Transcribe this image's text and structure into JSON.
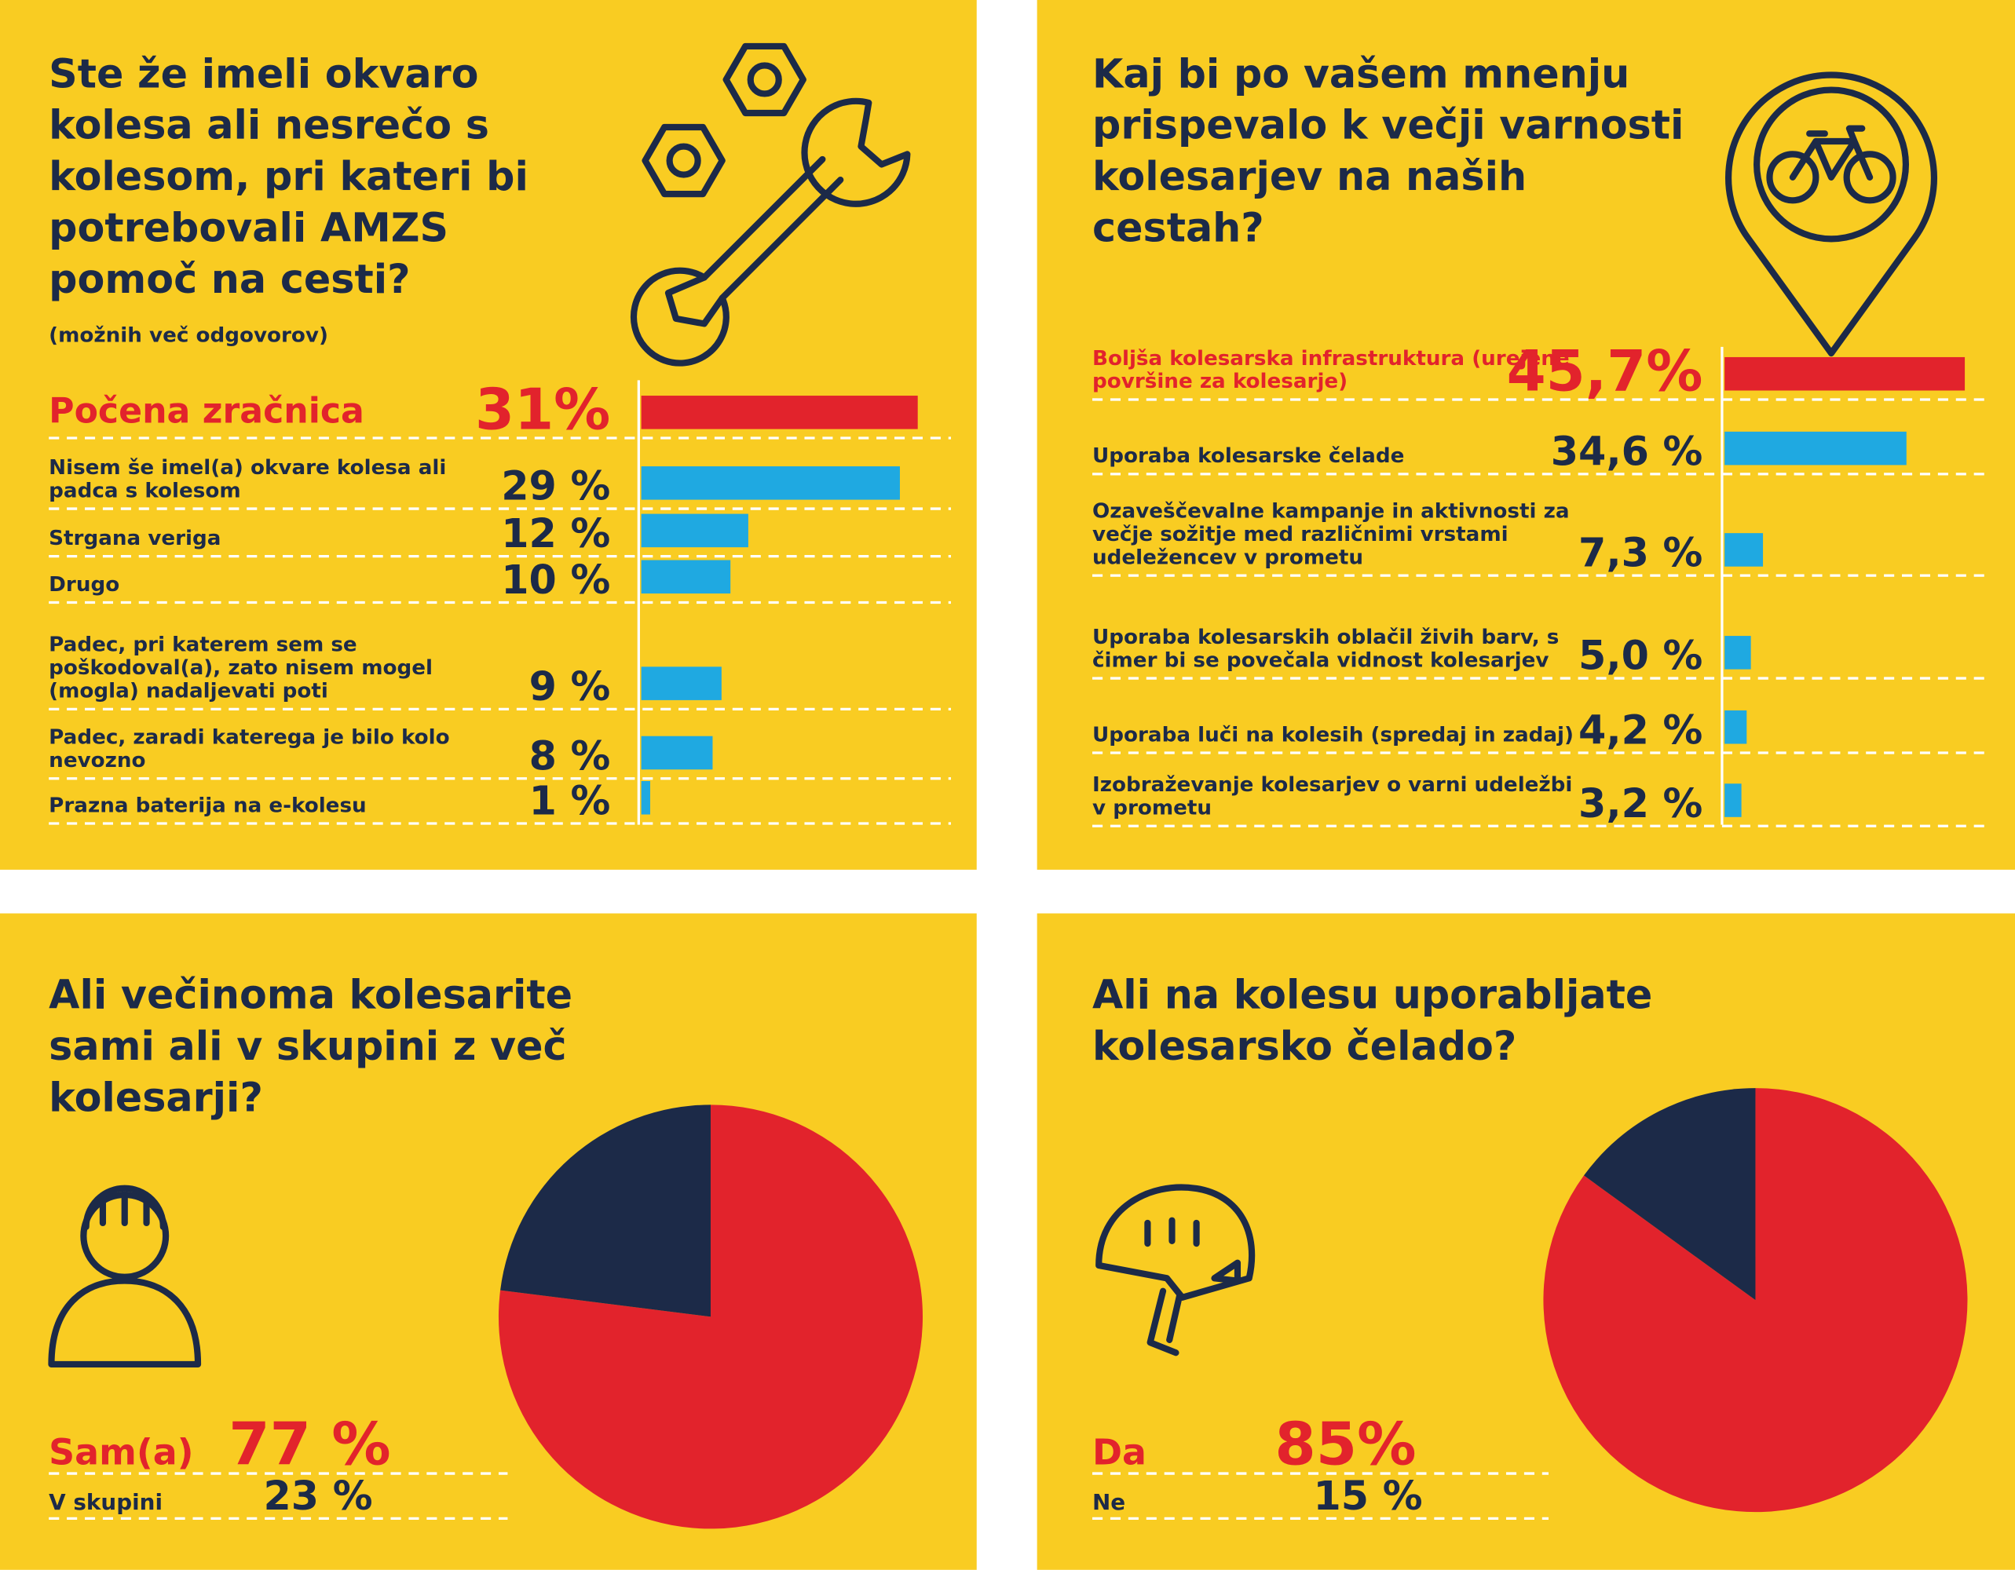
{
  "chart_data": [
    {
      "type": "bar",
      "title": "Ste že imeli okvaro kolesa ali nesrečo s kolesom, pri kateri bi potrebovali AMZS pomoč na cesti?",
      "subtitle": "(možnih več odgovorov)",
      "categories": [
        "Počena zračnica",
        "Nisem še imel(a) okvare kolesa ali padca s kolesom",
        "Strgana veriga",
        "Drugo",
        "Padec, pri katerem sem se poškodoval(a), zato nisem mogel (mogla) nadaljevati poti",
        "Padec, zaradi katerega je bilo kolo nevozno",
        "Prazna baterija na e-kolesu"
      ],
      "values": [
        31,
        29,
        12,
        10,
        9,
        8,
        1
      ],
      "value_labels": [
        "31%",
        "29 %",
        "12 %",
        "10 %",
        "9 %",
        "8 %",
        "1 %"
      ],
      "colors": [
        "#e2232c",
        "#1fa9e1",
        "#1fa9e1",
        "#1fa9e1",
        "#1fa9e1",
        "#1fa9e1",
        "#1fa9e1"
      ]
    },
    {
      "type": "bar",
      "title": "Kaj bi po vašem mnenju prispevalo k večji varnosti kolesarjev na naših cestah?",
      "categories": [
        "Boljša kolesarska infrastruktura (urejene površine za kolesarje)",
        "Uporaba kolesarske čelade",
        "Ozaveščevalne kampanje in aktivnosti za večje sožitje med različnimi vrstami udeležencev v prometu",
        "Uporaba kolesarskih oblačil živih barv, s čimer bi se povečala vidnost kolesarjev",
        "Uporaba luči na kolesih (spredaj in zadaj)",
        "Izobraževanje kolesarjev o varni udeležbi v prometu"
      ],
      "values": [
        45.7,
        34.6,
        7.3,
        5.0,
        4.2,
        3.2
      ],
      "value_labels": [
        "45,7%",
        "34,6 %",
        "7,3 %",
        "5,0 %",
        "4,2 %",
        "3,2 %"
      ],
      "colors": [
        "#e2232c",
        "#1fa9e1",
        "#1fa9e1",
        "#1fa9e1",
        "#1fa9e1",
        "#1fa9e1"
      ]
    },
    {
      "type": "pie",
      "title": "Ali večinoma kolesarite sami ali v skupini z več kolesarji?",
      "categories": [
        "Sam(a)",
        "V skupini"
      ],
      "values": [
        77,
        23
      ],
      "value_labels": [
        "77 %",
        "23 %"
      ],
      "colors": [
        "#e2232c",
        "#1c2a48"
      ]
    },
    {
      "type": "pie",
      "title": "Ali na kolesu uporabljate kolesarsko čelado?",
      "categories": [
        "Da",
        "Ne"
      ],
      "values": [
        85,
        15
      ],
      "value_labels": [
        "85%",
        "15 %"
      ],
      "colors": [
        "#e2232c",
        "#1c2a48"
      ]
    }
  ]
}
